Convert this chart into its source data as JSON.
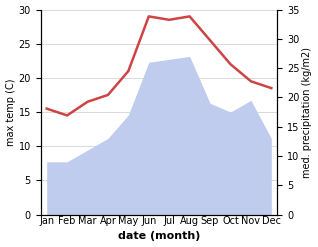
{
  "months": [
    "Jan",
    "Feb",
    "Mar",
    "Apr",
    "May",
    "Jun",
    "Jul",
    "Aug",
    "Sep",
    "Oct",
    "Nov",
    "Dec"
  ],
  "temperature": [
    15.5,
    14.5,
    16.5,
    17.5,
    21.0,
    29.0,
    28.5,
    29.0,
    25.5,
    22.0,
    19.5,
    18.5
  ],
  "precipitation": [
    9.0,
    9.0,
    11.0,
    13.0,
    17.0,
    26.0,
    26.5,
    27.0,
    19.0,
    17.5,
    19.5,
    13.0
  ],
  "temp_color": "#cc4444",
  "precip_color": "#c0ccee",
  "bg_color": "#ffffff",
  "temp_ylim": [
    0,
    30
  ],
  "precip_ylim": [
    0,
    35
  ],
  "temp_yticks": [
    0,
    5,
    10,
    15,
    20,
    25,
    30
  ],
  "precip_yticks": [
    0,
    5,
    10,
    15,
    20,
    25,
    30,
    35
  ],
  "xlabel": "date (month)",
  "ylabel_left": "max temp (C)",
  "ylabel_right": "med. precipitation (kg/m2)",
  "xlabel_fontsize": 8,
  "ylabel_fontsize": 7,
  "tick_fontsize": 7,
  "line_width": 1.8
}
